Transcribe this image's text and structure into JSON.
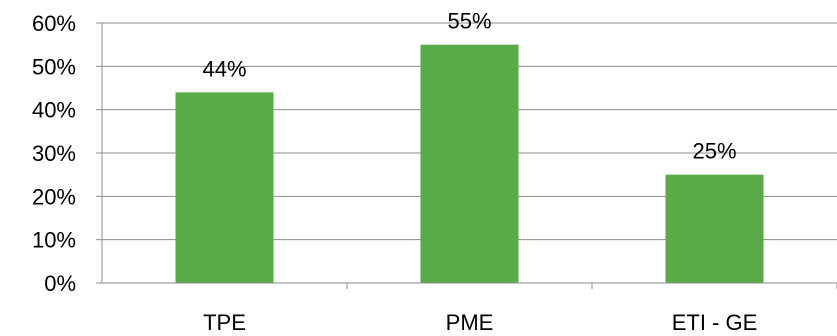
{
  "chart_data": {
    "type": "bar",
    "categories": [
      "TPE",
      "PME",
      "ETI - GE"
    ],
    "values": [
      44,
      55,
      25
    ],
    "data_labels": [
      "44%",
      "55%",
      "25%"
    ],
    "y_ticks": [
      0,
      10,
      20,
      30,
      40,
      50,
      60
    ],
    "y_tick_labels": [
      "0%",
      "10%",
      "20%",
      "30%",
      "40%",
      "50%",
      "60%"
    ],
    "ylim": [
      0,
      60
    ],
    "grid": true,
    "legend": "none",
    "bar_color": "#58ab48"
  }
}
